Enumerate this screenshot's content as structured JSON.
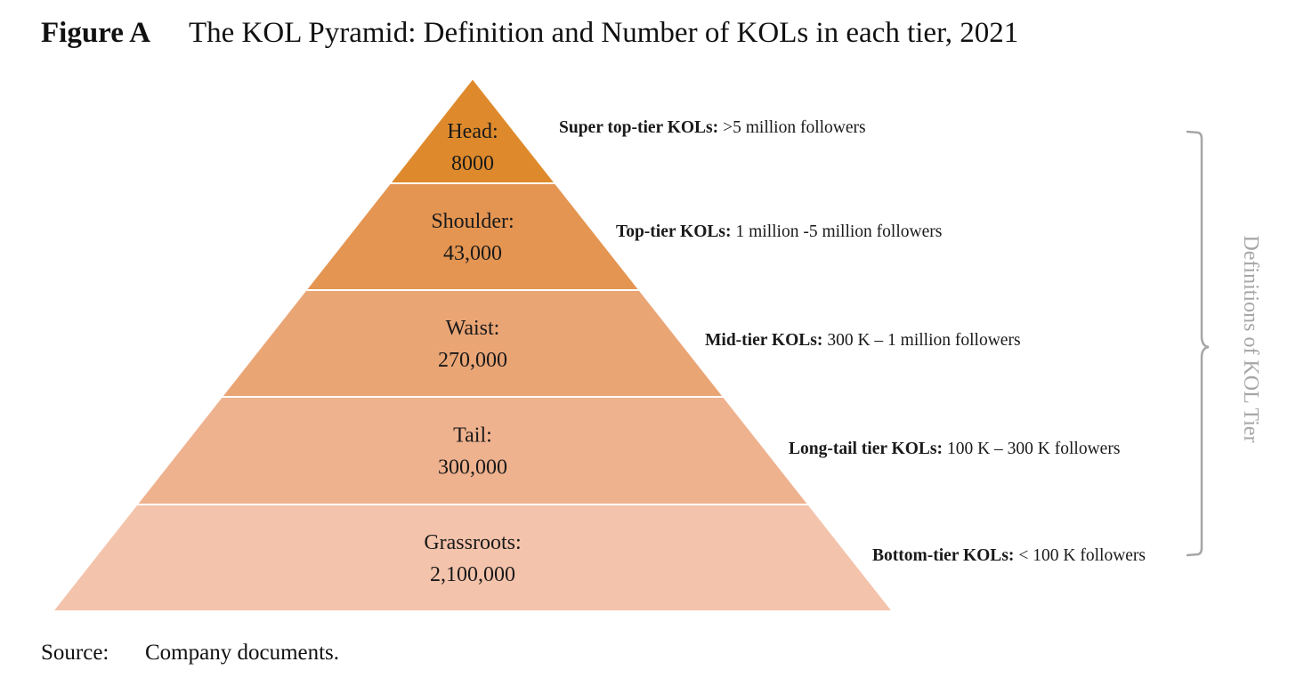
{
  "figure": {
    "label": "Figure A",
    "title": "The KOL Pyramid: Definition and Number of KOLs in each tier, 2021"
  },
  "tiers": [
    {
      "name": "Head:",
      "count": "8000",
      "color": "#de8a2c",
      "definition_bold": "Super top-tier KOLs:",
      "definition_text": ">5 million followers"
    },
    {
      "name": "Shoulder:",
      "count": "43,000",
      "color": "#e49552",
      "definition_bold": "Top-tier KOLs:",
      "definition_text": "1 million -5 million followers"
    },
    {
      "name": "Waist:",
      "count": "270,000",
      "color": "#eaa575",
      "definition_bold": "Mid-tier KOLs:",
      "definition_text": "300 K – 1 million followers"
    },
    {
      "name": "Tail:",
      "count": "300,000",
      "color": "#efb28e",
      "definition_bold": "Long-tail tier KOLs:",
      "definition_text": "100 K – 300 K followers"
    },
    {
      "name": "Grassroots:",
      "count": "2,100,000",
      "color": "#f4c3ab",
      "definition_bold": "Bottom-tier KOLs:",
      "definition_text": "< 100 K followers"
    }
  ],
  "bracket": {
    "label": "Definitions of KOL Tier",
    "color": "#a6a6a6"
  },
  "source": {
    "label": "Source:",
    "text": "Company documents."
  }
}
